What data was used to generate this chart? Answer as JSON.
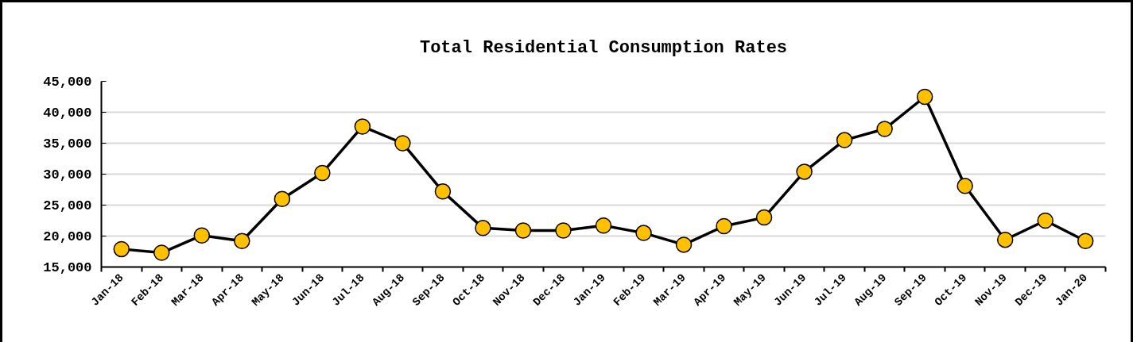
{
  "chart_data": {
    "type": "line",
    "title": "Total Residential Consumption Rates",
    "categories": [
      "Jan-18",
      "Feb-18",
      "Mar-18",
      "Apr-18",
      "May-18",
      "Jun-18",
      "Jul-18",
      "Aug-18",
      "Sep-18",
      "Oct-18",
      "Nov-18",
      "Dec-18",
      "Jan-19",
      "Feb-19",
      "Mar-19",
      "Apr-19",
      "May-19",
      "Jun-19",
      "Jul-19",
      "Aug-19",
      "Sep-19",
      "Oct-19",
      "Nov-19",
      "Dec-19",
      "Jan-20"
    ],
    "series": [
      {
        "color": "#ffc000",
        "values": [
          17900,
          17300,
          20100,
          19200,
          26000,
          30200,
          37700,
          35000,
          27200,
          21300,
          20900,
          20900,
          21700,
          20500,
          18600,
          21600,
          23000,
          30400,
          35500,
          37300,
          42500,
          28100,
          19400,
          22500,
          19200
        ]
      }
    ],
    "ylim": [
      15000,
      45000
    ],
    "yticks": [
      {
        "value": 15000,
        "label": "15,000"
      },
      {
        "value": 20000,
        "label": "20,000"
      },
      {
        "value": 25000,
        "label": "25,000"
      },
      {
        "value": 30000,
        "label": "30,000"
      },
      {
        "value": 35000,
        "label": "35,000"
      },
      {
        "value": 40000,
        "label": "40,000"
      },
      {
        "value": 45000,
        "label": "45,000"
      }
    ],
    "grid": "y",
    "marker": "circle",
    "line_style": "solid"
  }
}
